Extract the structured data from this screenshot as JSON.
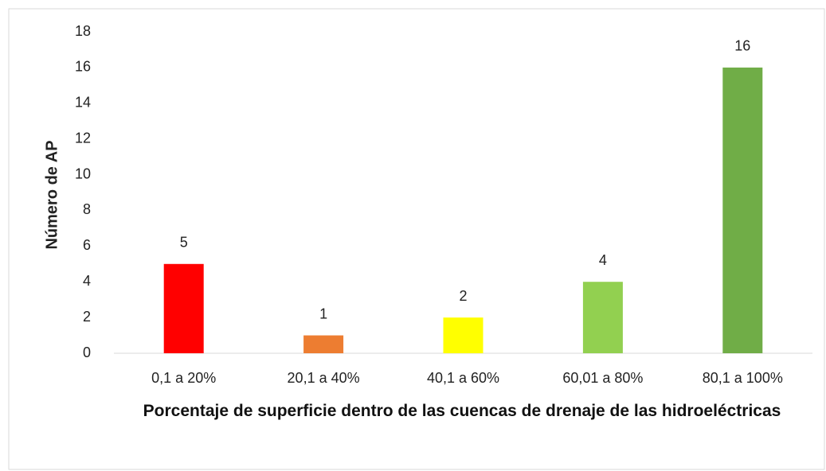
{
  "chart_data": {
    "type": "bar",
    "x_label": "Porcentaje de superficie dentro de las cuencas de drenaje de las hidroeléctricas",
    "y_label": "Número de AP",
    "categories": [
      "0,1 a 20%",
      "20,1 a 40%",
      "40,1 a 60%",
      "60,01 a 80%",
      "80,1 a 100%"
    ],
    "values": [
      5,
      1,
      2,
      4,
      16
    ],
    "colors": [
      "#ff0000",
      "#ed7d31",
      "#ffff00",
      "#92d050",
      "#70ad47"
    ],
    "ylim": [
      0,
      18
    ],
    "yticks": [
      0,
      2,
      4,
      6,
      8,
      10,
      12,
      14,
      16,
      18
    ],
    "grid": false
  }
}
